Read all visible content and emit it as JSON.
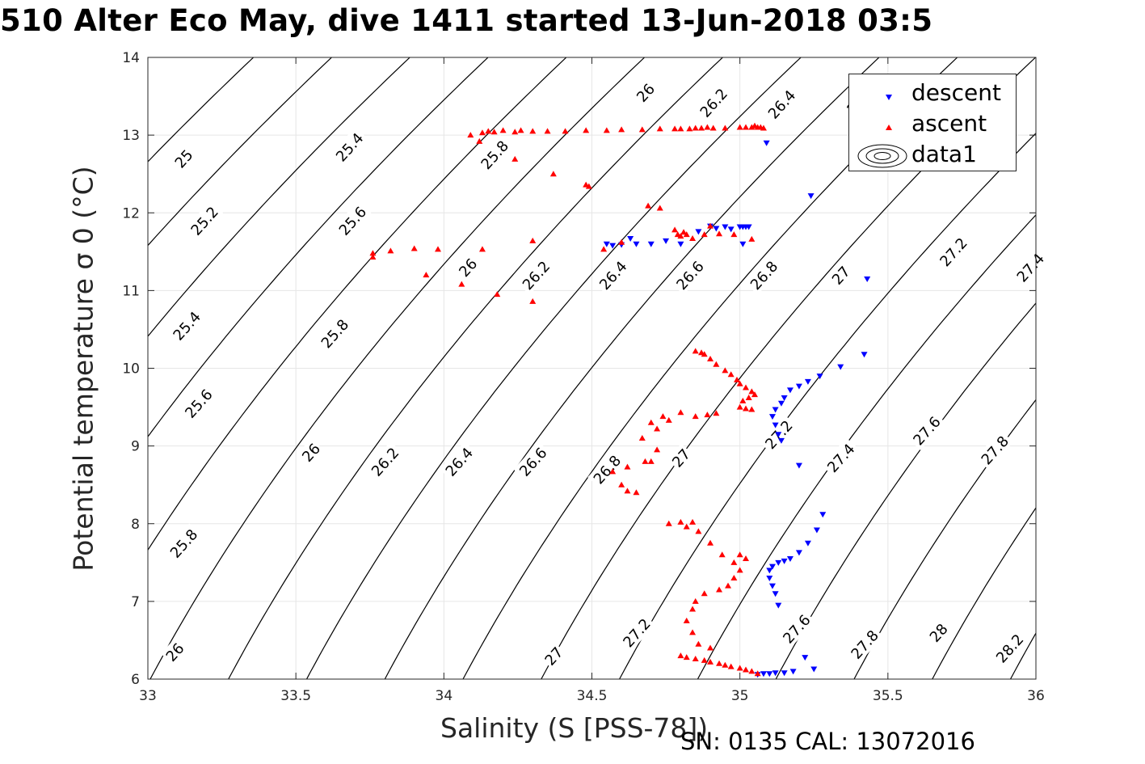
{
  "figure": {
    "title": "510 Alter Eco May, dive 1411 started 13-Jun-2018 03:5",
    "footer": "SN: 0135  CAL: 13072016",
    "colors": {
      "descent": "#0000ff",
      "ascent": "#ff0000",
      "contour": "#000000",
      "grid": "#e6e6e6"
    }
  },
  "chart_data": {
    "type": "scatter",
    "xlabel": "Salinity (S [PSS-78])",
    "ylabel": "Potential temperature σ 0 (°C)",
    "xlim": [
      33,
      36
    ],
    "ylim": [
      6,
      14
    ],
    "xticks": [
      "33",
      "33.5",
      "34",
      "34.5",
      "35",
      "35.5",
      "36"
    ],
    "yticks": [
      "6",
      "7",
      "8",
      "9",
      "10",
      "11",
      "12",
      "13",
      "14"
    ],
    "grid": true,
    "legend": {
      "position": "top-right",
      "entries": [
        "descent",
        "ascent",
        "data1"
      ]
    },
    "contours": {
      "levels": [
        25,
        25.2,
        25.4,
        25.6,
        25.8,
        26,
        26.2,
        26.4,
        26.6,
        26.8,
        27,
        27.2,
        27.4,
        27.6,
        27.8,
        28,
        28.2
      ],
      "labels": [
        {
          "text": "25",
          "s": 33.12,
          "t": 12.7
        },
        {
          "text": "25.2",
          "s": 33.19,
          "t": 11.9
        },
        {
          "text": "25.4",
          "s": 33.13,
          "t": 10.55
        },
        {
          "text": "25.6",
          "s": 33.17,
          "t": 9.55
        },
        {
          "text": "25.8",
          "s": 33.12,
          "t": 7.75
        },
        {
          "text": "26",
          "s": 33.09,
          "t": 6.35
        },
        {
          "text": "25.4",
          "s": 33.68,
          "t": 12.85
        },
        {
          "text": "25.6",
          "s": 33.69,
          "t": 11.9
        },
        {
          "text": "25.8",
          "s": 33.63,
          "t": 10.45
        },
        {
          "text": "26",
          "s": 33.55,
          "t": 8.92
        },
        {
          "text": "26.2",
          "s": 33.8,
          "t": 8.8
        },
        {
          "text": "26.4",
          "s": 34.05,
          "t": 8.8
        },
        {
          "text": "26.6",
          "s": 34.3,
          "t": 8.8
        },
        {
          "text": "26.8",
          "s": 34.55,
          "t": 8.7
        },
        {
          "text": "27",
          "s": 34.8,
          "t": 8.85
        },
        {
          "text": "27.2",
          "s": 35.13,
          "t": 9.15
        },
        {
          "text": "27.4",
          "s": 35.34,
          "t": 8.85
        },
        {
          "text": "27.6",
          "s": 35.63,
          "t": 9.2
        },
        {
          "text": "27.8",
          "s": 35.86,
          "t": 8.95
        },
        {
          "text": "25.8",
          "s": 34.17,
          "t": 12.75
        },
        {
          "text": "26",
          "s": 34.08,
          "t": 11.3
        },
        {
          "text": "26.2",
          "s": 34.31,
          "t": 11.2
        },
        {
          "text": "26.4",
          "s": 34.57,
          "t": 11.2
        },
        {
          "text": "26.6",
          "s": 34.83,
          "t": 11.2
        },
        {
          "text": "26.8",
          "s": 35.08,
          "t": 11.2
        },
        {
          "text": "27",
          "s": 35.34,
          "t": 11.2
        },
        {
          "text": "27.2",
          "s": 35.72,
          "t": 11.5
        },
        {
          "text": "27.4",
          "s": 35.98,
          "t": 11.3
        },
        {
          "text": "26",
          "s": 34.68,
          "t": 13.55
        },
        {
          "text": "26.2",
          "s": 34.91,
          "t": 13.42
        },
        {
          "text": "26.4",
          "s": 35.14,
          "t": 13.4
        },
        {
          "text": "2",
          "s": 35.38,
          "t": 13.35
        },
        {
          "text": "27",
          "s": 34.37,
          "t": 6.3
        },
        {
          "text": "27.2",
          "s": 34.65,
          "t": 6.6
        },
        {
          "text": "27.6",
          "s": 35.19,
          "t": 6.65
        },
        {
          "text": "27.8",
          "s": 35.42,
          "t": 6.45
        },
        {
          "text": "28",
          "s": 35.67,
          "t": 6.6
        },
        {
          "text": "28.2",
          "s": 35.91,
          "t": 6.4
        }
      ]
    },
    "series": [
      {
        "name": "descent",
        "marker": "triangle-down",
        "color": "#0000ff",
        "points": [
          [
            35.09,
            12.9
          ],
          [
            35.24,
            12.22
          ],
          [
            34.55,
            11.6
          ],
          [
            34.57,
            11.58
          ],
          [
            34.6,
            11.59
          ],
          [
            34.63,
            11.67
          ],
          [
            34.65,
            11.6
          ],
          [
            34.7,
            11.6
          ],
          [
            34.75,
            11.64
          ],
          [
            34.8,
            11.6
          ],
          [
            34.86,
            11.76
          ],
          [
            34.9,
            11.83
          ],
          [
            34.92,
            11.8
          ],
          [
            34.95,
            11.82
          ],
          [
            34.97,
            11.79
          ],
          [
            35.0,
            11.82
          ],
          [
            35.01,
            11.82
          ],
          [
            35.02,
            11.82
          ],
          [
            35.03,
            11.82
          ],
          [
            35.01,
            11.6
          ],
          [
            35.43,
            11.15
          ],
          [
            35.42,
            10.18
          ],
          [
            35.34,
            10.02
          ],
          [
            35.27,
            9.9
          ],
          [
            35.23,
            9.83
          ],
          [
            35.2,
            9.77
          ],
          [
            35.17,
            9.72
          ],
          [
            35.15,
            9.62
          ],
          [
            35.14,
            9.55
          ],
          [
            35.12,
            9.47
          ],
          [
            35.11,
            9.38
          ],
          [
            35.12,
            9.27
          ],
          [
            35.13,
            9.15
          ],
          [
            35.14,
            9.07
          ],
          [
            35.2,
            8.75
          ],
          [
            35.28,
            8.12
          ],
          [
            35.26,
            7.92
          ],
          [
            35.23,
            7.75
          ],
          [
            35.2,
            7.63
          ],
          [
            35.17,
            7.55
          ],
          [
            35.15,
            7.52
          ],
          [
            35.13,
            7.5
          ],
          [
            35.11,
            7.45
          ],
          [
            35.1,
            7.4
          ],
          [
            35.1,
            7.3
          ],
          [
            35.11,
            7.2
          ],
          [
            35.12,
            7.1
          ],
          [
            35.13,
            6.95
          ],
          [
            35.22,
            6.28
          ],
          [
            35.25,
            6.13
          ],
          [
            35.18,
            6.1
          ],
          [
            35.15,
            6.08
          ],
          [
            35.12,
            6.08
          ],
          [
            35.1,
            6.07
          ],
          [
            35.08,
            6.07
          ],
          [
            35.06,
            6.06
          ]
        ]
      },
      {
        "name": "ascent",
        "marker": "triangle-up",
        "color": "#ff0000",
        "points": [
          [
            34.09,
            13.0
          ],
          [
            34.12,
            12.92
          ],
          [
            34.13,
            13.03
          ],
          [
            34.15,
            13.05
          ],
          [
            34.17,
            13.04
          ],
          [
            34.2,
            13.06
          ],
          [
            34.24,
            13.04
          ],
          [
            34.26,
            13.06
          ],
          [
            34.3,
            13.05
          ],
          [
            34.35,
            13.05
          ],
          [
            34.41,
            13.05
          ],
          [
            34.48,
            13.06
          ],
          [
            34.55,
            13.06
          ],
          [
            34.6,
            13.07
          ],
          [
            34.67,
            13.07
          ],
          [
            34.73,
            13.08
          ],
          [
            34.78,
            13.08
          ],
          [
            34.8,
            13.08
          ],
          [
            34.83,
            13.08
          ],
          [
            34.85,
            13.09
          ],
          [
            34.87,
            13.09
          ],
          [
            34.89,
            13.1
          ],
          [
            34.91,
            13.09
          ],
          [
            34.95,
            13.09
          ],
          [
            35.0,
            13.1
          ],
          [
            35.02,
            13.1
          ],
          [
            35.04,
            13.1
          ],
          [
            35.05,
            13.12
          ],
          [
            35.06,
            13.1
          ],
          [
            35.07,
            13.1
          ],
          [
            35.08,
            13.09
          ],
          [
            34.24,
            12.69
          ],
          [
            34.37,
            12.5
          ],
          [
            34.48,
            12.36
          ],
          [
            34.49,
            12.34
          ],
          [
            34.69,
            12.09
          ],
          [
            34.73,
            12.06
          ],
          [
            34.78,
            11.78
          ],
          [
            34.79,
            11.72
          ],
          [
            34.8,
            11.7
          ],
          [
            34.81,
            11.75
          ],
          [
            34.82,
            11.72
          ],
          [
            34.84,
            11.67
          ],
          [
            34.88,
            11.72
          ],
          [
            34.9,
            11.83
          ],
          [
            34.93,
            11.73
          ],
          [
            34.98,
            11.72
          ],
          [
            35.04,
            11.66
          ],
          [
            34.54,
            11.53
          ],
          [
            34.6,
            11.62
          ],
          [
            34.3,
            11.64
          ],
          [
            34.13,
            11.53
          ],
          [
            33.98,
            11.53
          ],
          [
            33.9,
            11.54
          ],
          [
            33.82,
            11.51
          ],
          [
            33.76,
            11.48
          ],
          [
            33.76,
            11.43
          ],
          [
            33.94,
            11.2
          ],
          [
            34.06,
            11.08
          ],
          [
            34.18,
            10.95
          ],
          [
            34.3,
            10.86
          ],
          [
            34.85,
            10.22
          ],
          [
            34.87,
            10.2
          ],
          [
            34.88,
            10.18
          ],
          [
            34.9,
            10.12
          ],
          [
            34.92,
            10.05
          ],
          [
            34.95,
            9.97
          ],
          [
            34.97,
            9.92
          ],
          [
            34.99,
            9.85
          ],
          [
            35.0,
            9.8
          ],
          [
            35.02,
            9.75
          ],
          [
            35.04,
            9.7
          ],
          [
            35.05,
            9.66
          ],
          [
            35.03,
            9.62
          ],
          [
            35.01,
            9.58
          ],
          [
            35.0,
            9.5
          ],
          [
            35.02,
            9.48
          ],
          [
            35.04,
            9.47
          ],
          [
            34.92,
            9.42
          ],
          [
            34.89,
            9.4
          ],
          [
            34.85,
            9.38
          ],
          [
            34.8,
            9.43
          ],
          [
            34.76,
            9.33
          ],
          [
            34.74,
            9.38
          ],
          [
            34.72,
            9.22
          ],
          [
            34.7,
            9.3
          ],
          [
            34.67,
            9.1
          ],
          [
            34.72,
            8.95
          ],
          [
            34.7,
            8.8
          ],
          [
            34.68,
            8.8
          ],
          [
            34.62,
            8.73
          ],
          [
            34.57,
            8.67
          ],
          [
            34.6,
            8.5
          ],
          [
            34.62,
            8.42
          ],
          [
            34.65,
            8.4
          ],
          [
            34.76,
            8.0
          ],
          [
            34.8,
            8.02
          ],
          [
            34.82,
            7.96
          ],
          [
            34.84,
            8.02
          ],
          [
            34.86,
            7.9
          ],
          [
            34.9,
            7.75
          ],
          [
            34.94,
            7.6
          ],
          [
            34.98,
            7.5
          ],
          [
            35.0,
            7.6
          ],
          [
            35.02,
            7.55
          ],
          [
            35.0,
            7.4
          ],
          [
            34.98,
            7.3
          ],
          [
            34.96,
            7.2
          ],
          [
            34.93,
            7.15
          ],
          [
            34.88,
            7.1
          ],
          [
            34.85,
            7.0
          ],
          [
            34.84,
            6.9
          ],
          [
            34.82,
            6.75
          ],
          [
            34.84,
            6.6
          ],
          [
            34.86,
            6.45
          ],
          [
            34.9,
            6.4
          ],
          [
            34.8,
            6.3
          ],
          [
            34.82,
            6.28
          ],
          [
            34.85,
            6.26
          ],
          [
            34.88,
            6.24
          ],
          [
            34.9,
            6.22
          ],
          [
            34.93,
            6.2
          ],
          [
            34.95,
            6.18
          ],
          [
            34.97,
            6.16
          ],
          [
            35.0,
            6.14
          ],
          [
            35.02,
            6.12
          ],
          [
            35.04,
            6.1
          ],
          [
            35.06,
            6.07
          ]
        ]
      }
    ]
  }
}
